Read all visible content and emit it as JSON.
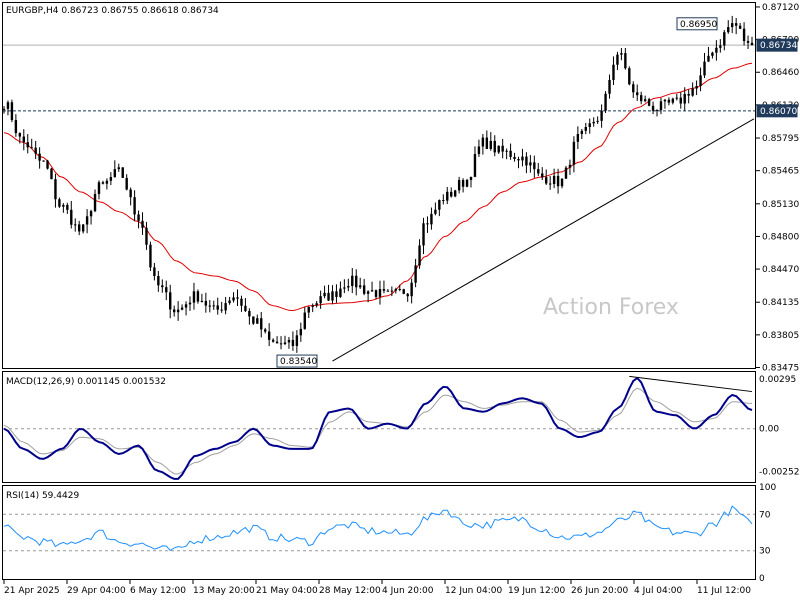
{
  "chart_data": [
    {
      "type": "candlestick",
      "title": "EURGBP,H4 0.86723 0.86755 0.86618 0.86734",
      "watermark": "Action Forex",
      "ylim": [
        0.8348,
        0.8715
      ],
      "y_ticks": [
        "0.87120",
        "0.86790",
        "0.86460",
        "0.86130",
        "0.85795",
        "0.85465",
        "0.85130",
        "0.84800",
        "0.84470",
        "0.84135",
        "0.83805",
        "0.83475"
      ],
      "x_ticks": [
        "21 Apr 2025",
        "29 Apr 04:00",
        "6 May 12:00",
        "13 May 20:00",
        "21 May 04:00",
        "28 May 12:00",
        "4 Jun 20:00",
        "12 Jun 04:00",
        "19 Jun 12:00",
        "26 Jun 20:00",
        "4 Jul 04:00",
        "11 Jul 12:00"
      ],
      "current_price": {
        "value": 0.86734,
        "label": "0.86734"
      },
      "level_line": {
        "value": 0.8607,
        "label": "0.86070"
      },
      "high_marker": {
        "value": 0.8695,
        "label": "0.86950"
      },
      "low_marker": {
        "value": 0.8354,
        "label": "0.83540"
      },
      "trendline": {
        "start": 0.8354,
        "end": 0.8605
      },
      "price_anchors": [
        0.8615,
        0.8575,
        0.8555,
        0.851,
        0.8485,
        0.853,
        0.8545,
        0.85,
        0.843,
        0.8405,
        0.842,
        0.8405,
        0.842,
        0.8395,
        0.8372,
        0.837,
        0.8412,
        0.842,
        0.8435,
        0.8425,
        0.842,
        0.8425,
        0.8495,
        0.852,
        0.8535,
        0.8575,
        0.8565,
        0.856,
        0.854,
        0.8535,
        0.858,
        0.86,
        0.8665,
        0.862,
        0.861,
        0.8615,
        0.863,
        0.867,
        0.8695,
        0.867
      ],
      "moving_average": {
        "color": "#e00000",
        "anchors": [
          0.8585,
          0.8575,
          0.856,
          0.854,
          0.8525,
          0.8515,
          0.8505,
          0.8495,
          0.8475,
          0.8455,
          0.8443,
          0.844,
          0.8435,
          0.8425,
          0.841,
          0.8405,
          0.841,
          0.8412,
          0.8413,
          0.8415,
          0.842,
          0.8435,
          0.846,
          0.848,
          0.8495,
          0.851,
          0.8525,
          0.8535,
          0.854,
          0.8545,
          0.8555,
          0.857,
          0.8595,
          0.861,
          0.862,
          0.8625,
          0.863,
          0.864,
          0.865,
          0.8655
        ]
      },
      "colors": {
        "candle": "#000000",
        "line": "#000000"
      }
    },
    {
      "type": "line",
      "title": "MACD(12,26,9) 0.001145 0.001532",
      "ylim": [
        -0.0031,
        0.0033
      ],
      "y_ticks": [
        "0.00295",
        "0.00",
        "-0.002529"
      ],
      "series": [
        {
          "color": "#00008b",
          "anchors": [
            0.0,
            -0.0012,
            -0.0018,
            -0.0012,
            0.0,
            -0.0008,
            -0.0015,
            -0.001,
            -0.0025,
            -0.003,
            -0.0016,
            -0.0012,
            -0.0008,
            0.0,
            -0.001,
            -0.0012,
            -0.0012,
            0.001,
            0.0012,
            0.0,
            0.0003,
            0.0,
            0.0015,
            0.0025,
            0.0012,
            0.001,
            0.0015,
            0.0018,
            0.0015,
            0.0,
            -0.0005,
            -0.0002,
            0.0012,
            0.003,
            0.001,
            0.0008,
            0.0,
            0.0008,
            0.002,
            0.0011
          ]
        },
        {
          "color": "#a0a0a0",
          "anchors": [
            0.0002,
            -0.0008,
            -0.0015,
            -0.0013,
            -0.0005,
            -0.0006,
            -0.0012,
            -0.0011,
            -0.002,
            -0.0027,
            -0.002,
            -0.0015,
            -0.001,
            -0.0003,
            -0.0006,
            -0.001,
            -0.0011,
            0.0004,
            0.001,
            0.0004,
            0.0003,
            0.0001,
            0.001,
            0.002,
            0.0016,
            0.0012,
            0.0014,
            0.0016,
            0.0016,
            0.0005,
            -0.0002,
            -0.0001,
            0.0008,
            0.0024,
            0.0016,
            0.001,
            0.0004,
            0.0006,
            0.0016,
            0.0015
          ]
        }
      ],
      "zero_line": 0
    },
    {
      "type": "line",
      "title": "RSI(14) 59.4429",
      "ylim": [
        0,
        100
      ],
      "y_ticks": [
        "100",
        "70",
        "30",
        "0"
      ],
      "levels": [
        70,
        30
      ],
      "series": [
        {
          "color": "#1e90ff",
          "anchors": [
            55,
            45,
            40,
            35,
            42,
            50,
            40,
            38,
            32,
            30,
            42,
            45,
            50,
            55,
            45,
            42,
            40,
            55,
            58,
            52,
            50,
            48,
            65,
            75,
            60,
            58,
            62,
            65,
            55,
            45,
            45,
            50,
            62,
            70,
            55,
            50,
            48,
            60,
            75,
            59.4
          ]
        }
      ]
    }
  ]
}
